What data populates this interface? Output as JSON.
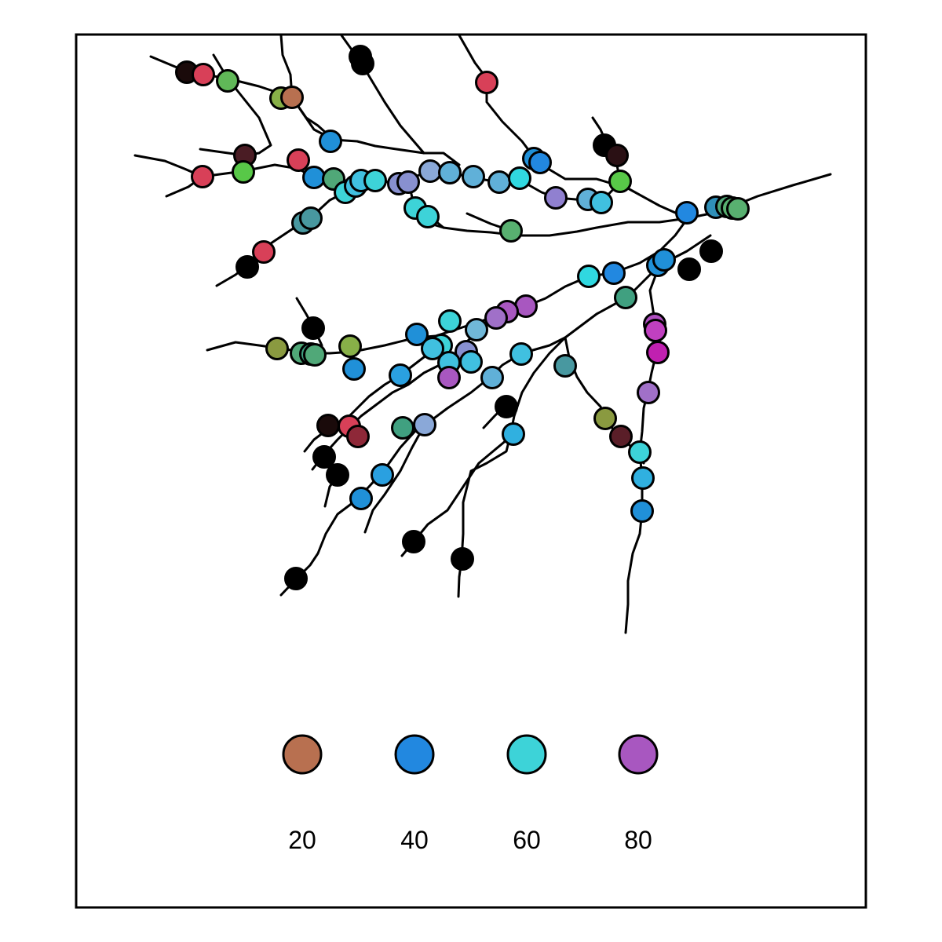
{
  "map": {
    "legend": {
      "items": [
        {
          "label": "20",
          "color": "#b87050"
        },
        {
          "label": "40",
          "color": "#2288e0"
        },
        {
          "label": "60",
          "color": "#3dd3d8"
        },
        {
          "label": "80",
          "color": "#a857c0"
        }
      ]
    },
    "site_colors": [
      "#000000",
      "#1a0a0a",
      "#2a1014",
      "#4a1c24",
      "#5a1e28",
      "#8e2838",
      "#b83048",
      "#d84058",
      "#d84058",
      "#d04060",
      "#b87050",
      "#8a9a40",
      "#88b048",
      "#60b858",
      "#58c848",
      "#50c040",
      "#58b070",
      "#50a878",
      "#40a080",
      "#4898a0",
      "#3090b8",
      "#2090d8",
      "#2288e0",
      "#2aa0e0",
      "#30b0e0",
      "#40c0e0",
      "#3dd3d8",
      "#30d8e0",
      "#60b0d8",
      "#70b8d8",
      "#8890d0",
      "#8aa8d8",
      "#9080d0",
      "#a070c8",
      "#a857c0",
      "#b050c0",
      "#c040c0",
      "#c020b0"
    ]
  }
}
